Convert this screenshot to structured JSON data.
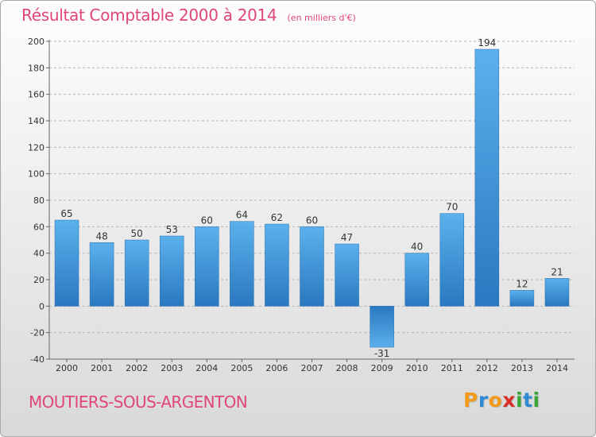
{
  "chart_data": {
    "type": "bar",
    "title": "Résultat Comptable 2000 à 2014",
    "subtitle": "(en milliers d'€)",
    "categories": [
      "2000",
      "2001",
      "2002",
      "2003",
      "2004",
      "2005",
      "2006",
      "2007",
      "2008",
      "2009",
      "2010",
      "2011",
      "2012",
      "2013",
      "2014"
    ],
    "values": [
      65,
      48,
      50,
      53,
      60,
      64,
      62,
      60,
      47,
      -31,
      40,
      70,
      194,
      12,
      21
    ],
    "data_labels": [
      "65",
      "48",
      "50",
      "53",
      "60",
      "64",
      "62",
      "60",
      "47",
      "-31",
      "40",
      "70",
      "194",
      "12",
      "21"
    ],
    "ylim": [
      -40,
      200
    ],
    "yticks": [
      "-40",
      "-20",
      "0",
      "20",
      "40",
      "60",
      "80",
      "100",
      "120",
      "140",
      "160",
      "180",
      "200"
    ],
    "grid": "horizontal dashed",
    "bar_color": "#3a8fd6",
    "xlabel": "",
    "ylabel": ""
  },
  "footer": {
    "commune": "MOUTIERS-SOUS-ARGENTON",
    "brand_letters": [
      "P",
      "r",
      "o",
      "x",
      "i",
      "t",
      "i"
    ],
    "brand_colors": [
      "#f29a1c",
      "#2f8ad1",
      "#f29a1c",
      "#d7302a",
      "#3aa63a",
      "#2f8ad1",
      "#3aa63a"
    ]
  },
  "colors": {
    "accent": "#e0457b",
    "text": "#333333"
  }
}
